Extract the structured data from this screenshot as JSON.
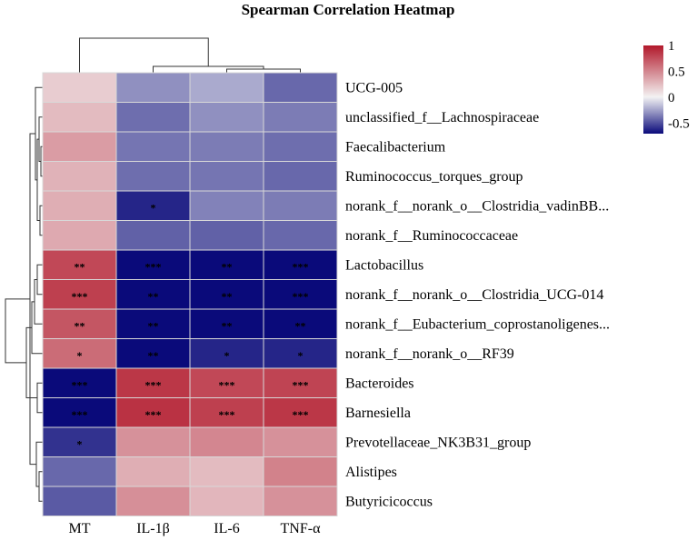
{
  "chart_data": {
    "type": "heatmap",
    "title": "Spearman Correlation Heatmap",
    "columns": [
      "MT",
      "IL-1β",
      "IL-6",
      "TNF-α"
    ],
    "rows": [
      "UCG-005",
      "unclassified_f__Lachnospiraceae",
      "Faecalibacterium",
      "Ruminococcus_torques_group",
      "norank_f__norank_o__Clostridia_vadinBB...",
      "norank_f__Ruminococcaceae",
      "Lactobacillus",
      "norank_f__norank_o__Clostridia_UCG-014",
      "norank_f__Eubacterium_coprostanoligenes...",
      "norank_f__norank_o__RF39",
      "Bacteroides",
      "Barnesiella",
      "Prevotellaceae_NK3B31_group",
      "Alistipes",
      "Butyricicoccus"
    ],
    "values": [
      [
        0.18,
        -0.3,
        -0.22,
        -0.42
      ],
      [
        0.26,
        -0.4,
        -0.3,
        -0.36
      ],
      [
        0.4,
        -0.38,
        -0.36,
        -0.4
      ],
      [
        0.3,
        -0.4,
        -0.38,
        -0.42
      ],
      [
        0.32,
        -0.62,
        -0.34,
        -0.36
      ],
      [
        0.34,
        -0.44,
        -0.44,
        -0.42
      ],
      [
        0.78,
        -0.9,
        -0.84,
        -0.92
      ],
      [
        0.82,
        -0.86,
        -0.82,
        -1.0
      ],
      [
        0.72,
        -0.86,
        -0.84,
        -0.78
      ],
      [
        0.62,
        -0.78,
        -0.62,
        -0.62
      ],
      [
        -0.96,
        0.86,
        0.78,
        0.8
      ],
      [
        -0.98,
        0.88,
        0.82,
        0.86
      ],
      [
        -0.58,
        0.45,
        0.5,
        0.45
      ],
      [
        -0.42,
        0.32,
        0.26,
        0.52
      ],
      [
        -0.46,
        0.46,
        0.28,
        0.45
      ]
    ],
    "significance": [
      [
        "",
        "",
        "",
        ""
      ],
      [
        "",
        "",
        "",
        ""
      ],
      [
        "",
        "",
        "",
        ""
      ],
      [
        "",
        "",
        "",
        ""
      ],
      [
        "",
        "*",
        "",
        ""
      ],
      [
        "",
        "",
        "",
        ""
      ],
      [
        "**",
        "***",
        "**",
        "***"
      ],
      [
        "***",
        "**",
        "**",
        "***"
      ],
      [
        "**",
        "**",
        "**",
        "**"
      ],
      [
        "*",
        "**",
        "*",
        "*"
      ],
      [
        "***",
        "***",
        "***",
        "***"
      ],
      [
        "***",
        "***",
        "***",
        "***"
      ],
      [
        "*",
        "",
        "",
        ""
      ],
      [
        "",
        "",
        "",
        ""
      ],
      [
        "",
        "",
        "",
        ""
      ]
    ],
    "color_scale": {
      "min": -0.7,
      "max": 1,
      "low_color": "#0a0a7a",
      "mid_color": "#f4f4f4",
      "high_color": "#b2182b"
    },
    "legend_ticks": [
      {
        "value": 1,
        "label": "1"
      },
      {
        "value": 0.5,
        "label": "0.5"
      },
      {
        "value": 0,
        "label": "0"
      },
      {
        "value": -0.5,
        "label": "-0.5"
      }
    ]
  }
}
